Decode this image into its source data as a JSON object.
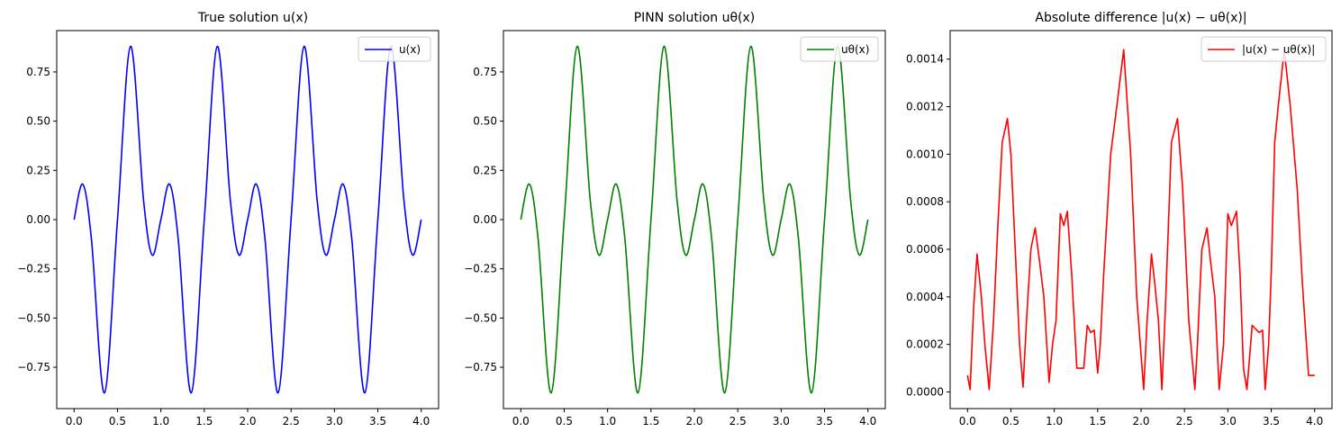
{
  "chart_data": [
    {
      "type": "line",
      "title": "True solution u(x)",
      "xlabel": "",
      "ylabel": "",
      "xlim": [
        -0.2,
        4.2
      ],
      "ylim": [
        -0.96,
        0.96
      ],
      "xticks": [
        0.0,
        0.5,
        1.0,
        1.5,
        2.0,
        2.5,
        3.0,
        3.5,
        4.0
      ],
      "xtick_labels": [
        "0.0",
        "0.5",
        "1.0",
        "1.5",
        "2.0",
        "2.5",
        "3.0",
        "3.5",
        "4.0"
      ],
      "yticks": [
        -0.75,
        -0.5,
        -0.25,
        0.0,
        0.25,
        0.5,
        0.75
      ],
      "ytick_labels": [
        "−0.75",
        "−0.50",
        "−0.25",
        "0.00",
        "0.25",
        "0.50",
        "0.75"
      ],
      "legend_position": "upper right",
      "grid": false,
      "series": [
        {
          "name": "u(x)",
          "color": "#0000ff",
          "x": [
            0,
            0.1,
            0.2,
            0.35,
            0.5,
            0.65,
            0.8,
            0.9,
            1.0,
            1.1,
            1.2,
            1.35,
            1.5,
            1.65,
            1.8,
            1.9,
            2.0,
            2.1,
            2.2,
            2.35,
            2.5,
            2.65,
            2.8,
            2.9,
            3.0,
            3.1,
            3.2,
            3.35,
            3.5,
            3.65,
            3.8,
            3.9,
            4.0
          ],
          "y": [
            0,
            0.18,
            -0.1,
            -0.88,
            0,
            0.88,
            0.1,
            -0.18,
            0,
            0.18,
            -0.1,
            -0.88,
            0,
            0.88,
            0.1,
            -0.18,
            0,
            0.18,
            -0.1,
            -0.88,
            0,
            0.88,
            0.1,
            -0.18,
            0,
            0.18,
            -0.1,
            -0.88,
            0,
            0.88,
            0.1,
            -0.18,
            0
          ]
        }
      ]
    },
    {
      "type": "line",
      "title": "PINN solution uθ(x)",
      "xlabel": "",
      "ylabel": "",
      "xlim": [
        -0.2,
        4.2
      ],
      "ylim": [
        -0.96,
        0.96
      ],
      "xticks": [
        0.0,
        0.5,
        1.0,
        1.5,
        2.0,
        2.5,
        3.0,
        3.5,
        4.0
      ],
      "xtick_labels": [
        "0.0",
        "0.5",
        "1.0",
        "1.5",
        "2.0",
        "2.5",
        "3.0",
        "3.5",
        "4.0"
      ],
      "yticks": [
        -0.75,
        -0.5,
        -0.25,
        0.0,
        0.25,
        0.5,
        0.75
      ],
      "ytick_labels": [
        "−0.75",
        "−0.50",
        "−0.25",
        "0.00",
        "0.25",
        "0.50",
        "0.75"
      ],
      "legend_position": "upper right",
      "grid": false,
      "series": [
        {
          "name": "uθ(x)",
          "color": "#008000",
          "x": [
            0,
            0.1,
            0.2,
            0.35,
            0.5,
            0.65,
            0.8,
            0.9,
            1.0,
            1.1,
            1.2,
            1.35,
            1.5,
            1.65,
            1.8,
            1.9,
            2.0,
            2.1,
            2.2,
            2.35,
            2.5,
            2.65,
            2.8,
            2.9,
            3.0,
            3.1,
            3.2,
            3.35,
            3.5,
            3.65,
            3.8,
            3.9,
            4.0
          ],
          "y": [
            0,
            0.18,
            -0.1,
            -0.88,
            0,
            0.88,
            0.1,
            -0.18,
            0,
            0.18,
            -0.1,
            -0.88,
            0,
            0.88,
            0.1,
            -0.18,
            0,
            0.18,
            -0.1,
            -0.88,
            0,
            0.88,
            0.1,
            -0.18,
            0,
            0.18,
            -0.1,
            -0.88,
            0,
            0.88,
            0.1,
            -0.18,
            0
          ]
        }
      ]
    },
    {
      "type": "line",
      "title": "Absolute difference |u(x) − uθ(x)|",
      "xlabel": "",
      "ylabel": "",
      "xlim": [
        -0.2,
        4.2
      ],
      "ylim": [
        -7e-05,
        0.00152
      ],
      "xticks": [
        0.0,
        0.5,
        1.0,
        1.5,
        2.0,
        2.5,
        3.0,
        3.5,
        4.0
      ],
      "xtick_labels": [
        "0.0",
        "0.5",
        "1.0",
        "1.5",
        "2.0",
        "2.5",
        "3.0",
        "3.5",
        "4.0"
      ],
      "yticks": [
        0.0,
        0.0002,
        0.0004,
        0.0006,
        0.0008,
        0.001,
        0.0012,
        0.0014
      ],
      "ytick_labels": [
        "0.0000",
        "0.0002",
        "0.0004",
        "0.0006",
        "0.0008",
        "0.0010",
        "0.0012",
        "0.0014"
      ],
      "legend_position": "upper right",
      "grid": false,
      "series": [
        {
          "name": "|u(x) − uθ(x)|",
          "color": "#ff0000",
          "x": [
            0.0,
            0.03,
            0.07,
            0.11,
            0.16,
            0.2,
            0.25,
            0.3,
            0.35,
            0.4,
            0.46,
            0.5,
            0.55,
            0.6,
            0.64,
            0.68,
            0.73,
            0.78,
            0.83,
            0.88,
            0.94,
            0.98,
            1.02,
            1.07,
            1.11,
            1.15,
            1.2,
            1.26,
            1.34,
            1.38,
            1.42,
            1.46,
            1.5,
            1.53,
            1.57,
            1.65,
            1.72,
            1.8,
            1.88,
            1.95,
            2.03,
            2.07,
            2.12,
            2.16,
            2.2,
            2.24,
            2.28,
            2.35,
            2.42,
            2.48,
            2.55,
            2.62,
            2.65,
            2.7,
            2.76,
            2.8,
            2.85,
            2.9,
            2.95,
            3.0,
            3.04,
            3.1,
            3.14,
            3.18,
            3.22,
            3.28,
            3.36,
            3.4,
            3.43,
            3.47,
            3.5,
            3.54,
            3.58,
            3.65,
            3.72,
            3.8,
            3.86,
            3.93,
            4.0
          ],
          "y": [
            7e-05,
            1e-05,
            0.00035,
            0.00058,
            0.0004,
            0.0002,
            1e-05,
            0.0003,
            0.0007,
            0.00105,
            0.00115,
            0.001,
            0.0006,
            0.0002,
            2e-05,
            0.0003,
            0.0006,
            0.00069,
            0.00055,
            0.0004,
            4e-05,
            0.0002,
            0.0003,
            0.00075,
            0.0007,
            0.00076,
            0.0005,
            0.0001,
            0.0001,
            0.00028,
            0.00025,
            0.00026,
            8e-05,
            0.0002,
            0.0005,
            0.001,
            0.0012,
            0.00144,
            0.001,
            0.0004,
            1e-05,
            0.0003,
            0.00058,
            0.00045,
            0.0003,
            1e-05,
            0.00035,
            0.00105,
            0.00115,
            0.00085,
            0.0003,
            1e-05,
            0.0002,
            0.0006,
            0.00069,
            0.00055,
            0.0004,
            1e-05,
            0.0002,
            0.00075,
            0.0007,
            0.00076,
            0.0005,
            0.0001,
            1e-05,
            0.00028,
            0.00025,
            0.00026,
            1e-05,
            0.0002,
            0.0005,
            0.00105,
            0.0012,
            0.00144,
            0.0012,
            0.00085,
            0.00045,
            7e-05,
            7e-05
          ]
        }
      ]
    }
  ]
}
